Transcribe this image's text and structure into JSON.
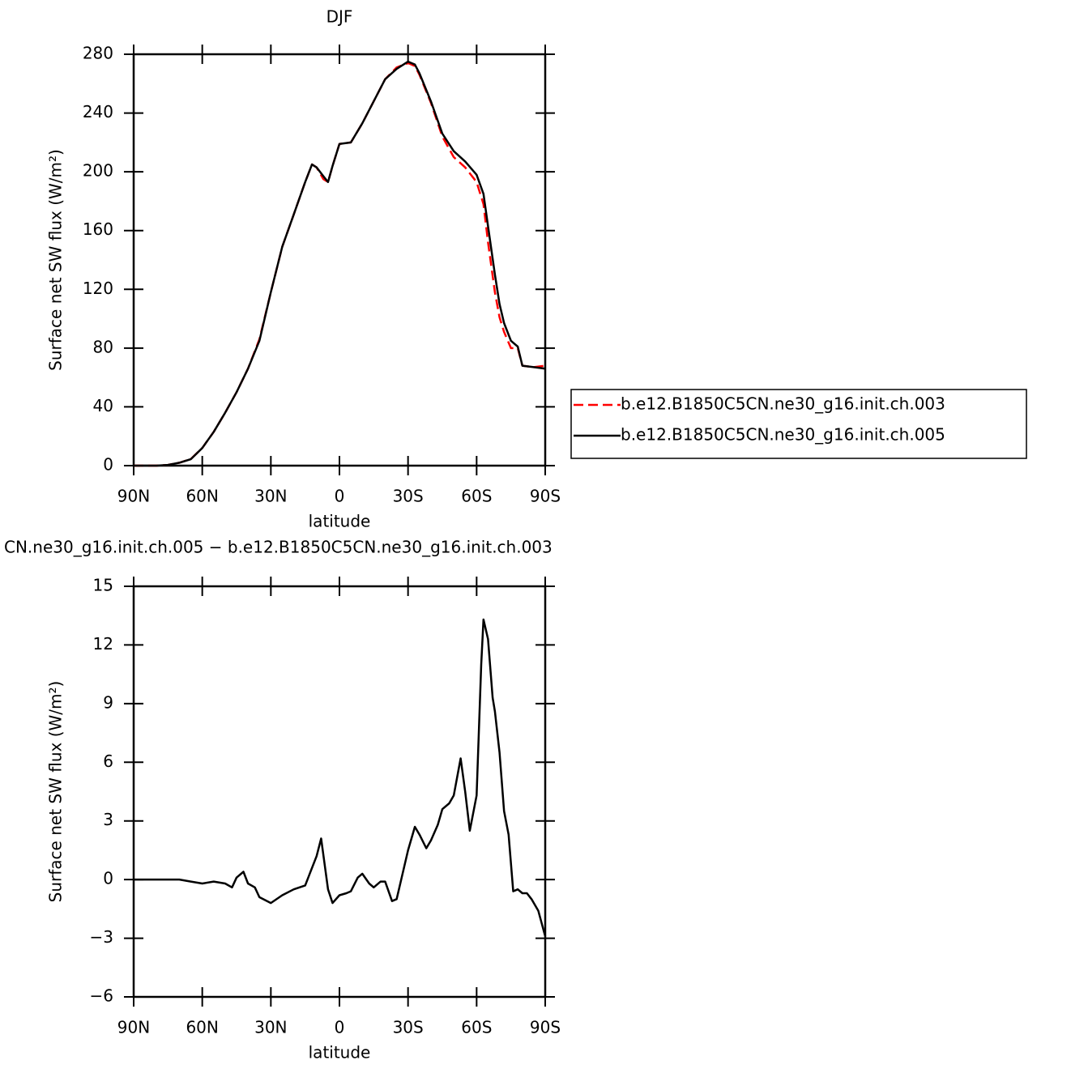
{
  "chart_data": [
    {
      "type": "line",
      "title": "DJF",
      "xlabel": "latitude",
      "ylabel": "Surface net SW flux (W/m²)",
      "x": [
        90,
        85,
        80,
        75,
        70,
        65,
        60,
        55,
        50,
        45,
        40,
        35,
        30,
        25,
        20,
        15,
        12,
        10,
        7,
        5,
        3,
        0,
        -5,
        -10,
        -15,
        -20,
        -25,
        -30,
        -33,
        -35,
        -40,
        -45,
        -50,
        -55,
        -60,
        -63,
        -65,
        -68,
        -70,
        -72,
        -75,
        -78,
        -80,
        -85,
        -90
      ],
      "series": [
        {
          "name": "b.e12.B1850C5CN.ne30_g16.init.ch.003",
          "color": "#ff0000",
          "dash": true,
          "values": [
            0,
            0,
            0,
            0.5,
            2,
            4.5,
            12,
            23,
            36,
            50,
            66,
            86,
            118,
            149,
            171,
            193,
            205,
            203,
            195,
            193,
            204,
            219,
            220,
            233,
            248,
            263,
            271,
            274,
            272,
            266,
            247,
            224,
            210,
            203,
            193,
            178,
            152,
            118,
            101,
            91,
            80,
            80,
            68,
            67,
            68
          ]
        },
        {
          "name": "b.e12.B1850C5CN.ne30_g16.init.ch.005",
          "color": "#000000",
          "dash": false,
          "values": [
            0,
            0,
            0,
            0.5,
            2,
            4.4,
            12,
            23,
            36,
            50,
            66,
            85,
            118,
            149,
            171,
            193,
            205,
            203,
            197,
            193,
            204,
            219,
            220,
            233,
            248,
            263,
            270,
            275,
            273,
            267,
            248,
            226,
            214,
            207,
            198,
            185,
            163,
            130,
            110,
            97,
            85,
            81,
            68,
            67,
            66
          ]
        }
      ],
      "xlim": [
        90,
        -90
      ],
      "xticks": [
        {
          "value": 90,
          "label": "90N"
        },
        {
          "value": 60,
          "label": "60N"
        },
        {
          "value": 30,
          "label": "30N"
        },
        0,
        {
          "value": -30,
          "label": "30S"
        },
        {
          "value": -60,
          "label": "60S"
        },
        {
          "value": -90,
          "label": "90S"
        }
      ],
      "ylim": [
        0,
        280
      ],
      "yticks": [
        0,
        40,
        80,
        120,
        160,
        200,
        240,
        280
      ],
      "legend": "right"
    },
    {
      "type": "line",
      "title": "CN.ne30_g16.init.ch.005 − b.e12.B1850C5CN.ne30_g16.init.ch.003",
      "xlabel": "latitude",
      "ylabel": "Surface net SW flux (W/m²)",
      "x": [
        90,
        85,
        80,
        75,
        70,
        65,
        60,
        55,
        50,
        47,
        45,
        42,
        40,
        37,
        35,
        30,
        25,
        20,
        15,
        10,
        8,
        5,
        3,
        0,
        -3,
        -5,
        -8,
        -10,
        -13,
        -15,
        -18,
        -20,
        -23,
        -25,
        -30,
        -33,
        -35,
        -38,
        -40,
        -43,
        -45,
        -48,
        -50,
        -53,
        -55,
        -57,
        -60,
        -62,
        -63,
        -65,
        -67,
        -68,
        -70,
        -72,
        -74,
        -76,
        -78,
        -80,
        -82,
        -84,
        -87,
        -90
      ],
      "series": [
        {
          "color": "#000000",
          "dash": false,
          "values": [
            0,
            0,
            0,
            0,
            0,
            -0.1,
            -0.2,
            -0.1,
            -0.2,
            -0.4,
            0.1,
            0.4,
            -0.2,
            -0.4,
            -0.9,
            -1.2,
            -0.8,
            -0.5,
            -0.3,
            1.2,
            2.1,
            -0.5,
            -1.2,
            -0.8,
            -0.7,
            -0.6,
            0.1,
            0.3,
            -0.2,
            -0.4,
            -0.1,
            -0.1,
            -1.1,
            -1.0,
            1.5,
            2.7,
            2.3,
            1.6,
            2.0,
            2.8,
            3.6,
            3.9,
            4.3,
            6.2,
            4.5,
            2.5,
            4.3,
            11,
            13.3,
            12.3,
            9.3,
            8.6,
            6.5,
            3.5,
            2.3,
            -0.6,
            -0.5,
            -0.7,
            -0.7,
            -1.0,
            -1.6,
            -2.9
          ]
        }
      ],
      "xlim": [
        90,
        -90
      ],
      "xticks": [
        {
          "value": 90,
          "label": "90N"
        },
        {
          "value": 60,
          "label": "60N"
        },
        {
          "value": 30,
          "label": "30N"
        },
        0,
        {
          "value": -30,
          "label": "30S"
        },
        {
          "value": -60,
          "label": "60S"
        },
        {
          "value": -90,
          "label": "90S"
        }
      ],
      "ylim": [
        -6,
        15
      ],
      "yticks": [
        {
          "value": -6,
          "label": "−6"
        },
        {
          "value": -3,
          "label": "−3"
        },
        0,
        3,
        6,
        9,
        12,
        15
      ]
    }
  ]
}
